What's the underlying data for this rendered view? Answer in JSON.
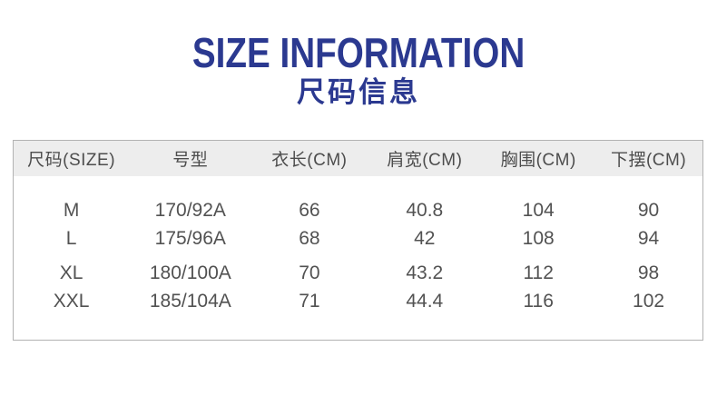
{
  "title": {
    "en": "SIZE INFORMATION",
    "zh": "尺码信息"
  },
  "colors": {
    "title_blue": "#2b3990",
    "header_bg": "#ededed",
    "table_border": "#b2b2b2",
    "header_text": "#4d4d4d",
    "body_text": "#525252"
  },
  "table": {
    "headers": [
      "尺码(SIZE)",
      "号型",
      "衣长(CM)",
      "肩宽(CM)",
      "胸围(CM)",
      "下摆(CM)"
    ],
    "rows": [
      [
        "M",
        "170/92A",
        "66",
        "40.8",
        "104",
        "90"
      ],
      [
        "L",
        "175/96A",
        "68",
        "42",
        "108",
        "94"
      ],
      [
        "XL",
        "180/100A",
        "70",
        "43.2",
        "112",
        "98"
      ],
      [
        "XXL",
        "185/104A",
        "71",
        "44.4",
        "116",
        "102"
      ]
    ]
  }
}
